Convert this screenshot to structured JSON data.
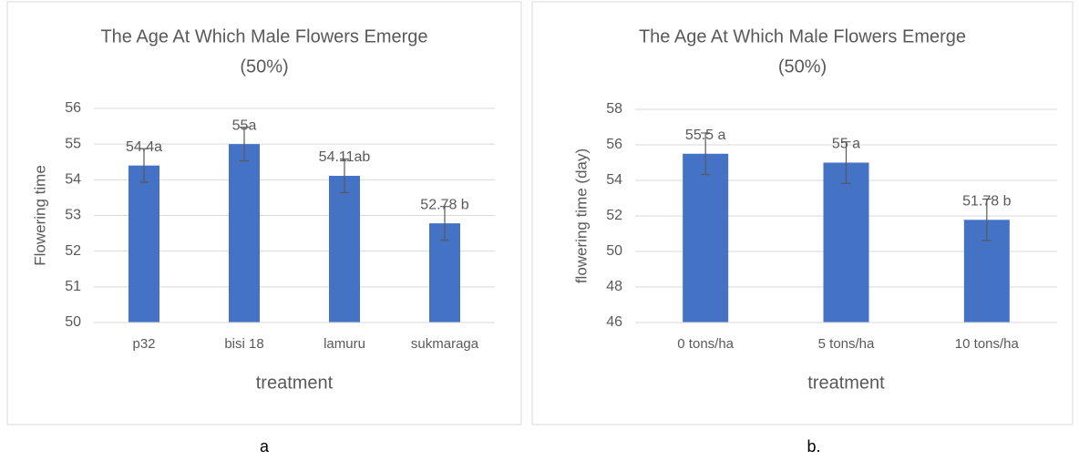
{
  "chart_data": [
    {
      "type": "bar",
      "title": [
        "The Age At Which Male Flowers Emerge",
        "(50%)"
      ],
      "categories": [
        "p32",
        "bisi 18",
        "lamuru",
        "sukmaraga"
      ],
      "values": [
        54.4,
        55,
        54.11,
        52.78
      ],
      "value_labels": [
        "54.4a",
        "55a",
        "54.11ab",
        "52.78 b"
      ],
      "errors": [
        0.47,
        0.47,
        0.47,
        0.47
      ],
      "color": "#4472c4",
      "ylabel": "Flowering time",
      "xlabel": "treatment",
      "ylim": [
        50,
        56
      ],
      "yticks": [
        50,
        51,
        52,
        53,
        54,
        55,
        56
      ],
      "grid": true,
      "caption": "a"
    },
    {
      "type": "bar",
      "title": [
        "The Age At Which Male Flowers Emerge",
        "(50%)"
      ],
      "categories": [
        "0 tons/ha",
        "5 tons/ha",
        "10 tons/ha"
      ],
      "values": [
        55.5,
        55,
        51.78
      ],
      "value_labels": [
        "55.5 a",
        "55 a",
        "51.78 b"
      ],
      "errors": [
        1.17,
        1.17,
        1.17
      ],
      "color": "#4472c4",
      "ylabel": "flowering time (day)",
      "xlabel": "treatment",
      "ylim": [
        46,
        58
      ],
      "yticks": [
        46,
        48,
        50,
        52,
        54,
        56,
        58
      ],
      "grid": true,
      "caption": "b."
    }
  ]
}
